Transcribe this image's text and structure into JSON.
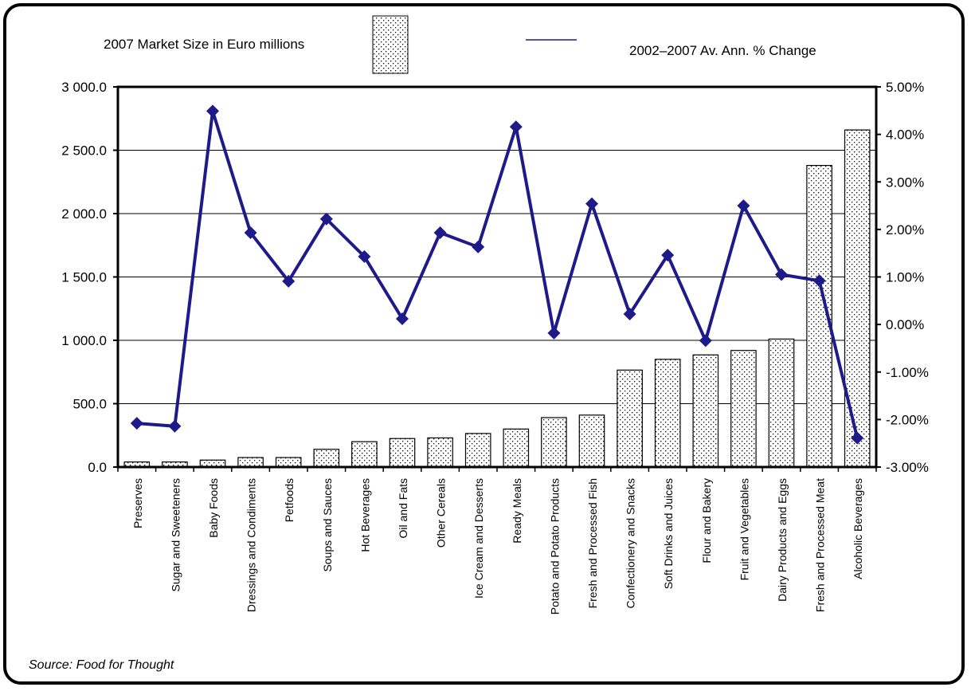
{
  "legend": {
    "bars_label": "2007 Market Size in Euro millions",
    "line_label": "2002–2007 Av. Ann. % Change"
  },
  "source": "Source: Food for Thought",
  "colors": {
    "line": "#1f1a8a",
    "bar_fill": "#ffffff",
    "bar_dots": "#000000"
  },
  "chart_data": {
    "type": "bar",
    "categories": [
      "Preserves",
      "Sugar and Sweeteners",
      "Baby Foods",
      "Dressings and Condiments",
      "Petfoods",
      "Soups and Sauces",
      "Hot Beverages",
      "Oil and Fats",
      "Other Cereals",
      "Ice Cream and Desserts",
      "Ready Meals",
      "Potato and Potato Products",
      "Fresh and Processed Fish",
      "Confectionery and Snacks",
      "Soft Drinks and Juices",
      "Flour and Bakery",
      "Fruit and Vegetables",
      "Dairy Products and Eggs",
      "Fresh and Processed Meat",
      "Alcoholic Beverages"
    ],
    "series": [
      {
        "name": "2007 Market Size in Euro millions",
        "type": "bar",
        "axis": "left",
        "values": [
          40,
          40,
          55,
          75,
          75,
          140,
          200,
          225,
          230,
          265,
          300,
          390,
          410,
          765,
          850,
          885,
          920,
          1010,
          2380,
          2660
        ]
      },
      {
        "name": "2002–2007 Av. Ann. % Change",
        "type": "line",
        "axis": "right",
        "values": [
          -2.08,
          -2.14,
          4.49,
          1.93,
          0.91,
          2.22,
          1.43,
          0.12,
          1.93,
          1.63,
          4.16,
          -0.18,
          2.54,
          0.22,
          1.46,
          -0.34,
          2.5,
          1.05,
          0.92,
          -2.39
        ]
      }
    ],
    "y_left": {
      "lim": [
        0,
        3000
      ],
      "ticks": [
        "0.0",
        "500.0",
        "1 000.0",
        "1 500.0",
        "2 000.0",
        "2 500.0",
        "3 000.0"
      ]
    },
    "y_right": {
      "lim": [
        -3,
        5
      ],
      "ticks": [
        "-3.00%",
        "-2.00%",
        "-1.00%",
        "0.00%",
        "1.00%",
        "2.00%",
        "3.00%",
        "4.00%",
        "5.00%"
      ]
    },
    "grid": "horizontal",
    "legend_position": "top"
  }
}
